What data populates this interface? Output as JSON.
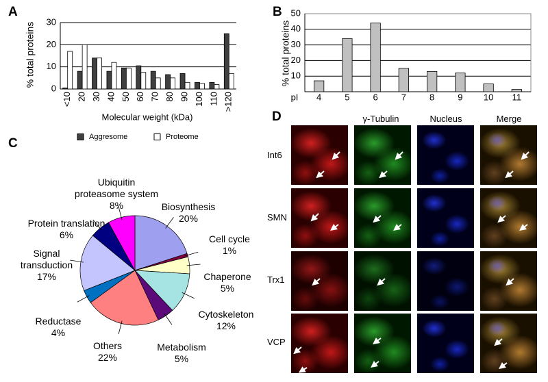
{
  "chart_data": [
    {
      "type": "bar",
      "label": "A",
      "y_label": "% total proteins",
      "x_label": "Molecular weight (kDa)",
      "categories": [
        "<10",
        "20",
        "30",
        "40",
        "50",
        "60",
        "70",
        "80",
        "90",
        "100",
        "110",
        ">120"
      ],
      "series": [
        {
          "name": "Aggresome",
          "color": "#404040",
          "values": [
            0.5,
            8,
            14,
            8,
            9.5,
            10.5,
            8,
            6.5,
            7,
            3,
            3,
            25
          ]
        },
        {
          "name": "Proteome",
          "color": "#ffffff",
          "values": [
            17,
            20,
            14,
            12,
            9.5,
            7.5,
            5,
            5,
            3,
            2.5,
            2,
            7
          ]
        }
      ],
      "ylim": [
        0,
        30
      ],
      "yticks": [
        0,
        10,
        20,
        30
      ],
      "grid": true
    },
    {
      "type": "bar",
      "label": "B",
      "y_label": "% total proteins",
      "x_label": "pI",
      "categories": [
        "4",
        "5",
        "6",
        "7",
        "8",
        "9",
        "10",
        "11"
      ],
      "values": [
        7,
        34,
        44,
        15,
        13,
        12,
        5,
        1.5
      ],
      "color": "#c0c0c0",
      "ylim": [
        0,
        50
      ],
      "yticks": [
        10,
        20,
        30,
        40,
        50
      ],
      "grid": true
    },
    {
      "type": "pie",
      "label": "C",
      "categories": [
        "Biosynthesis",
        "Cell cycle",
        "Chaperone",
        "Cytoskeleton",
        "Metabolism",
        "Others",
        "Reductase",
        "Signal transduction",
        "Protein translation",
        "Ubiquitin proteasome system"
      ],
      "values": [
        20,
        1,
        5,
        12,
        5,
        22,
        4,
        17,
        6,
        8
      ],
      "value_labels": [
        "20%",
        "1%",
        "5%",
        "12%",
        "5%",
        "22%",
        "4%",
        "17%",
        "6%",
        "8%"
      ],
      "colors": [
        "#9f9ff0",
        "#800040",
        "#ffffc8",
        "#a6e3e3",
        "#5c0a7a",
        "#ff8080",
        "#0070c0",
        "#c4c4ff",
        "#000080",
        "#ff00ff"
      ]
    }
  ],
  "panel_d": {
    "label": "D",
    "columns": [
      "γ-Tubulin",
      "Nucleus",
      "Merge"
    ],
    "rows": [
      "Int6",
      "SMN",
      "Trx1",
      "VCP"
    ]
  }
}
